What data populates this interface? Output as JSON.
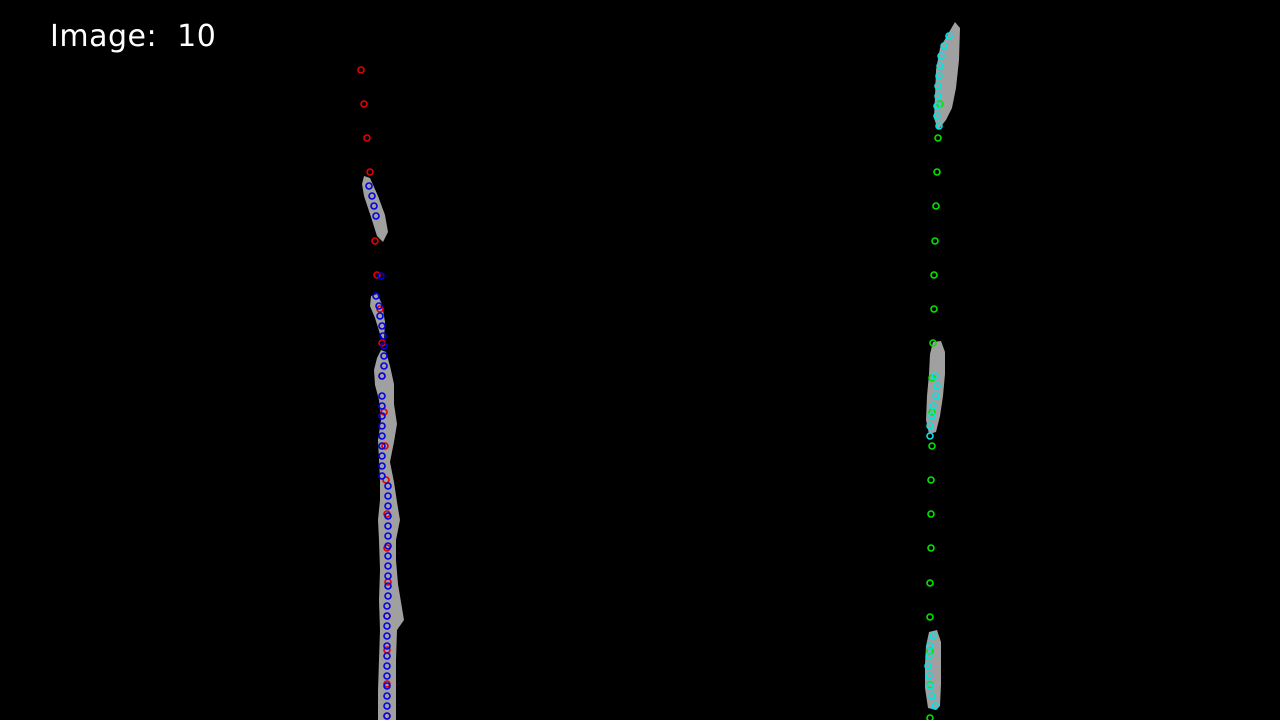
{
  "frame": {
    "label": "Image:  10"
  },
  "colors": {
    "background": "#000000",
    "segment": "#a0a0a0",
    "left_fit_points": "#e60000",
    "left_detected_points": "#0000e6",
    "right_fit_points": "#00e600",
    "right_detected_points": "#00e6e6"
  }
}
